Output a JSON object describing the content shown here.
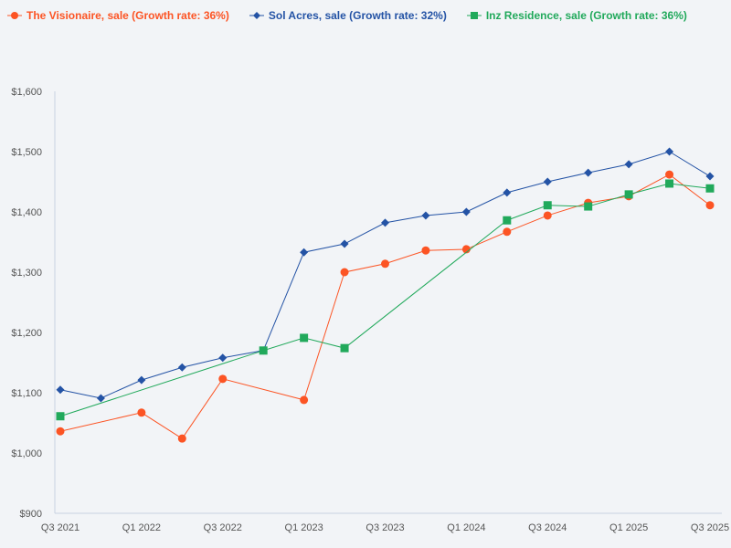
{
  "chart_data": {
    "type": "line",
    "title": "",
    "xlabel": "",
    "ylabel": "",
    "ylim": [
      900,
      1600
    ],
    "yticks": [
      "$900",
      "$1,000",
      "$1,100",
      "$1,200",
      "$1,300",
      "$1,400",
      "$1,500",
      "$1,600"
    ],
    "ytick_values": [
      900,
      1000,
      1100,
      1200,
      1300,
      1400,
      1500,
      1600
    ],
    "categories": [
      "Q3 2021",
      "Q4 2021",
      "Q1 2022",
      "Q2 2022",
      "Q3 2022",
      "Q4 2022",
      "Q1 2023",
      "Q2 2023",
      "Q3 2023",
      "Q4 2023",
      "Q1 2024",
      "Q2 2024",
      "Q3 2024",
      "Q4 2024",
      "Q1 2025",
      "Q2 2025",
      "Q3 2025"
    ],
    "xtick_labels": [
      "Q3 2021",
      "Q1 2022",
      "Q3 2022",
      "Q1 2023",
      "Q3 2023",
      "Q1 2024",
      "Q3 2024",
      "Q1 2025",
      "Q3 2025"
    ],
    "grid": false,
    "legend_position": "top-left",
    "series": [
      {
        "name": "The Visionaire, sale (Growth rate: 36%)",
        "color": "#fc5424",
        "marker": "circle",
        "values": [
          1036,
          null,
          1067,
          1024,
          1123,
          null,
          1088,
          1300,
          1314,
          1336,
          1338,
          1367,
          1394,
          1415,
          1426,
          1462,
          1411
        ]
      },
      {
        "name": "Sol Acres, sale (Growth rate: 32%)",
        "color": "#2453a5",
        "marker": "diamond",
        "values": [
          1105,
          1091,
          1121,
          1142,
          1158,
          1170,
          1333,
          1347,
          1382,
          1394,
          1400,
          1432,
          1450,
          1465,
          1479,
          1500,
          1459
        ]
      },
      {
        "name": "Inz Residence, sale (Growth rate: 36%)",
        "color": "#21a95b",
        "marker": "square",
        "values": [
          1061,
          null,
          null,
          null,
          null,
          1170,
          1191,
          1174,
          null,
          null,
          null,
          1386,
          1411,
          1409,
          1429,
          1447,
          1439
        ]
      }
    ]
  }
}
